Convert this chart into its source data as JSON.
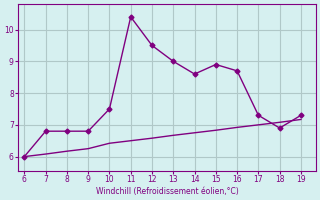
{
  "x": [
    6,
    7,
    8,
    9,
    10,
    11,
    12,
    13,
    14,
    15,
    16,
    17,
    18,
    19
  ],
  "y_line": [
    6.0,
    6.8,
    6.8,
    6.8,
    7.5,
    10.4,
    9.5,
    9.0,
    8.6,
    8.9,
    8.7,
    7.3,
    6.9,
    7.3
  ],
  "y_diag": [
    6.0,
    6.08,
    6.17,
    6.25,
    6.42,
    6.5,
    6.58,
    6.67,
    6.75,
    6.83,
    6.92,
    7.0,
    7.08,
    7.17
  ],
  "xlim": [
    5.7,
    19.7
  ],
  "ylim": [
    5.55,
    10.8
  ],
  "xticks": [
    6,
    7,
    8,
    9,
    10,
    11,
    12,
    13,
    14,
    15,
    16,
    17,
    18,
    19
  ],
  "yticks": [
    6,
    7,
    8,
    9,
    10
  ],
  "xlabel": "Windchill (Refroidissement éolien,°C)",
  "line_color": "#800080",
  "bg_color": "#d6f0f0",
  "grid_color": "#b0c8c8",
  "marker": "D",
  "marker_size": 2.5,
  "line_width": 1.0,
  "tick_fontsize": 5.5,
  "xlabel_fontsize": 5.5
}
